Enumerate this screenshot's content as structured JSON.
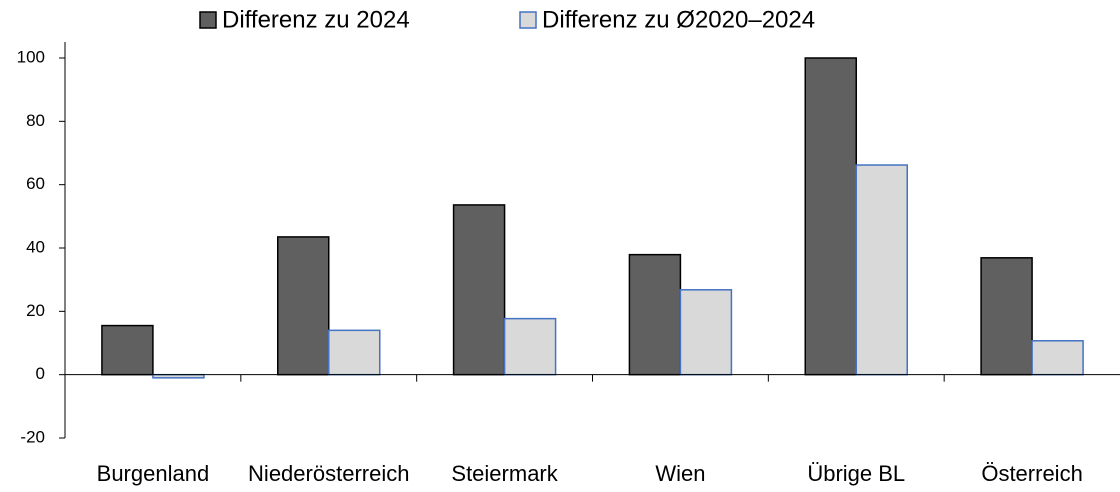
{
  "chart_data": {
    "type": "bar",
    "categories": [
      "Burgenland",
      "Niederösterreich",
      "Steiermark",
      "Wien",
      "Übrige BL",
      "Österreich"
    ],
    "series": [
      {
        "name": "Differenz zu 2024",
        "color": "#606060",
        "stroke": "#000000",
        "values": [
          15.5,
          43.5,
          53.6,
          37.9,
          100,
          36.9
        ]
      },
      {
        "name": "Differenz zu Ø2020–2024",
        "color": "#d9d9d9",
        "stroke": "#4472c4",
        "values": [
          -1,
          14,
          17.7,
          26.8,
          66.2,
          10.7
        ]
      }
    ],
    "ylim": [
      -20,
      100
    ],
    "yticks": [
      -20,
      0,
      20,
      40,
      60,
      80,
      100
    ],
    "grid": false,
    "legend": "top"
  }
}
